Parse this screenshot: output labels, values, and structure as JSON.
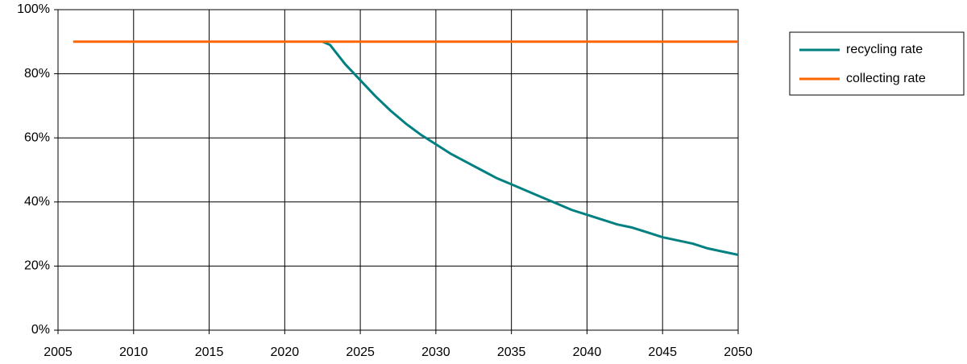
{
  "chart_data": {
    "type": "line",
    "xlim": [
      2005,
      2050
    ],
    "xticks": [
      2005,
      2010,
      2015,
      2020,
      2025,
      2030,
      2035,
      2040,
      2045,
      2050
    ],
    "ylim": [
      0,
      100
    ],
    "yticks": [
      {
        "value": 0,
        "label": "0%"
      },
      {
        "value": 20,
        "label": "20%"
      },
      {
        "value": 40,
        "label": "40%"
      },
      {
        "value": 60,
        "label": "60%"
      },
      {
        "value": 80,
        "label": "80%"
      },
      {
        "value": 100,
        "label": "100%"
      }
    ],
    "grid": true,
    "legend": "right",
    "series": [
      {
        "name": "recycling rate",
        "color": "#008080",
        "x": [
          2022.5,
          2023,
          2024,
          2025,
          2026,
          2027,
          2028,
          2029,
          2030,
          2031,
          2032,
          2033,
          2034,
          2035,
          2036,
          2037,
          2038,
          2039,
          2040,
          2041,
          2042,
          2043,
          2044,
          2045,
          2046,
          2047,
          2048,
          2049,
          2050
        ],
        "values": [
          90,
          89,
          83,
          78,
          73,
          68.5,
          64.5,
          61,
          58,
          55,
          52.5,
          50,
          47.5,
          45.5,
          43.5,
          41.5,
          39.5,
          37.5,
          36,
          34.5,
          33,
          32,
          30.5,
          29,
          28,
          27,
          25.5,
          24.5,
          23.5
        ]
      },
      {
        "name": "collecting rate",
        "color": "#ff6600",
        "x": [
          2006,
          2050
        ],
        "values": [
          90,
          90
        ]
      }
    ]
  }
}
